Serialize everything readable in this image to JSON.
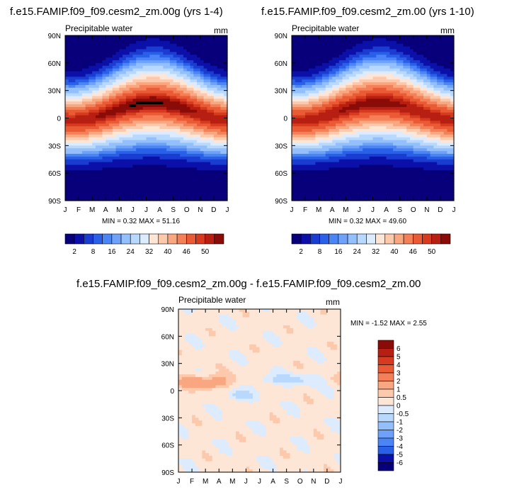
{
  "panels": [
    {
      "title": "f.e15.FAMIP.f09_f09.cesm2_zm.00g (yrs 1-4)",
      "variable_label": "Precipitable water",
      "units": "mm",
      "stats": "MIN =   0.32 MAX =  51.16",
      "colorbar_labels": [
        "2",
        "8",
        "16",
        "24",
        "32",
        "40",
        "46",
        "50"
      ]
    },
    {
      "title": "f.e15.FAMIP.f09_f09.cesm2_zm.00 (yrs 1-10)",
      "variable_label": "Precipitable water",
      "units": "mm",
      "stats": "MIN =   0.32 MAX =  49.60",
      "colorbar_labels": [
        "2",
        "8",
        "16",
        "24",
        "32",
        "40",
        "46",
        "50"
      ]
    },
    {
      "title": "f.e15.FAMIP.f09_f09.cesm2_zm.00g - f.e15.FAMIP.f09_f09.cesm2_zm.00",
      "variable_label": "Precipitable water",
      "units": "mm",
      "stats": "MIN =  -1.52 MAX =   2.55",
      "colorbar_labels": [
        "6",
        "5",
        "4",
        "3",
        "2",
        "1",
        "0.5",
        "0",
        "-0.5",
        "-1",
        "-2",
        "-3",
        "-4",
        "-5",
        "-6"
      ]
    }
  ],
  "chart_data": [
    {
      "type": "heatmap",
      "title": "f.e15.FAMIP.f09_f09.cesm2_zm.00g (yrs 1-4)",
      "variable": "Precipitable water",
      "units": "mm",
      "x_ticks": [
        "J",
        "F",
        "M",
        "A",
        "M",
        "J",
        "J",
        "A",
        "S",
        "O",
        "N",
        "D",
        "J"
      ],
      "y_ticks": [
        "90N",
        "60N",
        "30N",
        "0",
        "30S",
        "60S",
        "90S"
      ],
      "y_range": [
        -90,
        90
      ],
      "contour_levels": [
        2,
        4,
        6,
        8,
        10,
        12,
        16,
        20,
        24,
        28,
        32,
        36,
        40,
        44,
        46,
        48,
        50
      ],
      "min": 0.32,
      "max": 51.16
    },
    {
      "type": "heatmap",
      "title": "f.e15.FAMIP.f09_f09.cesm2_zm.00 (yrs 1-10)",
      "variable": "Precipitable water",
      "units": "mm",
      "x_ticks": [
        "J",
        "F",
        "M",
        "A",
        "M",
        "J",
        "J",
        "A",
        "S",
        "O",
        "N",
        "D",
        "J"
      ],
      "y_ticks": [
        "90N",
        "60N",
        "30N",
        "0",
        "30S",
        "60S",
        "90S"
      ],
      "y_range": [
        -90,
        90
      ],
      "contour_levels": [
        2,
        4,
        6,
        8,
        10,
        12,
        16,
        20,
        24,
        28,
        32,
        36,
        40,
        44,
        46,
        48,
        50
      ],
      "min": 0.32,
      "max": 49.6
    },
    {
      "type": "heatmap",
      "title": "f.e15.FAMIP.f09_f09.cesm2_zm.00g - f.e15.FAMIP.f09_f09.cesm2_zm.00",
      "variable": "Precipitable water",
      "units": "mm",
      "x_ticks": [
        "J",
        "F",
        "M",
        "A",
        "M",
        "J",
        "J",
        "A",
        "S",
        "O",
        "N",
        "D",
        "J"
      ],
      "y_ticks": [
        "90N",
        "60N",
        "30N",
        "0",
        "30S",
        "60S",
        "90S"
      ],
      "y_range": [
        -90,
        90
      ],
      "contour_levels": [
        -6,
        -5,
        -4,
        -3,
        -2,
        -1,
        -0.5,
        0,
        0.5,
        1,
        2,
        3,
        4,
        5,
        6
      ],
      "min": -1.52,
      "max": 2.55
    }
  ],
  "colors": {
    "seq": [
      "#08007a",
      "#0a10a8",
      "#1a3cd0",
      "#2a60e8",
      "#4a84f5",
      "#6ea2fa",
      "#93bffc",
      "#b8d8fd",
      "#dcebfe",
      "#fde6d6",
      "#fcc9ad",
      "#f9a781",
      "#f58058",
      "#ea5a35",
      "#d63a1f",
      "#b61f12",
      "#8a0c08"
    ],
    "div": [
      "#8a0c08",
      "#b61f12",
      "#d63a1f",
      "#ea5a35",
      "#f58058",
      "#f9a781",
      "#fcc9ad",
      "#fde6d6",
      "#dcebfe",
      "#b8d8fd",
      "#93bffc",
      "#6ea2fa",
      "#4a84f5",
      "#2a60e8",
      "#0a10a8",
      "#08007a"
    ]
  }
}
